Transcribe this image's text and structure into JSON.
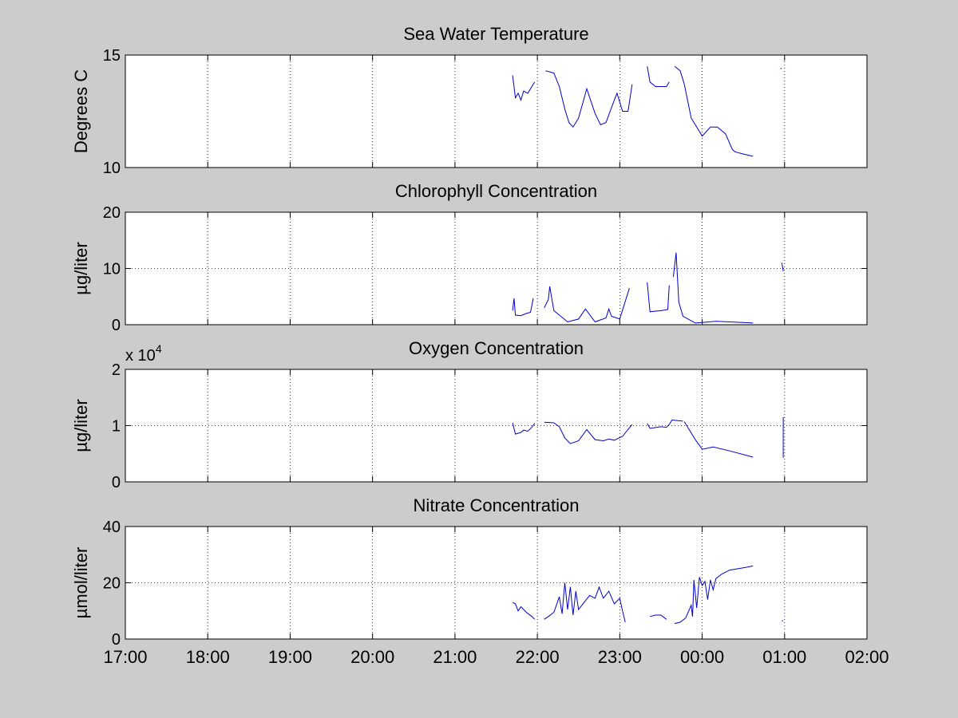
{
  "figure": {
    "background": "#cccccc",
    "axes_background": "#ffffff",
    "line_color": "#0000cc"
  },
  "chart_data": [
    {
      "type": "line",
      "title": "Sea Water Temperature",
      "ylabel": "Degrees C",
      "xlabel": "",
      "ylim": [
        10,
        15
      ],
      "yticks": [
        "10",
        "15"
      ],
      "ytick_values": [
        10,
        15
      ],
      "exponent_label": "",
      "xlim": [
        "17:00",
        "02:00"
      ],
      "grid": true,
      "show_xticklabels": false,
      "segments": [
        [
          [
            "21:42",
            14.1
          ],
          [
            "21:44",
            13.1
          ],
          [
            "21:46",
            13.3
          ],
          [
            "21:48",
            13.0
          ],
          [
            "21:50",
            13.4
          ],
          [
            "21:53",
            13.3
          ],
          [
            "21:56",
            13.6
          ],
          [
            "21:58",
            13.8
          ]
        ],
        [
          [
            "22:06",
            14.3
          ],
          [
            "22:12",
            14.2
          ],
          [
            "22:16",
            13.6
          ],
          [
            "22:20",
            12.6
          ],
          [
            "22:23",
            12.0
          ],
          [
            "22:26",
            11.8
          ],
          [
            "22:30",
            12.2
          ],
          [
            "22:36",
            13.5
          ],
          [
            "22:42",
            12.4
          ],
          [
            "22:46",
            11.9
          ],
          [
            "22:50",
            12.0
          ],
          [
            "22:56",
            13.0
          ],
          [
            "22:58",
            13.3
          ],
          [
            "23:02",
            12.5
          ],
          [
            "23:06",
            12.5
          ],
          [
            "23:09",
            13.7
          ]
        ],
        [
          [
            "23:20",
            14.5
          ],
          [
            "23:22",
            13.8
          ],
          [
            "23:26",
            13.6
          ],
          [
            "23:32",
            13.6
          ],
          [
            "23:34",
            13.6
          ],
          [
            "23:36",
            13.8
          ]
        ],
        [
          [
            "23:40",
            14.5
          ],
          [
            "23:44",
            14.3
          ],
          [
            "23:47",
            13.7
          ],
          [
            "23:52",
            12.2
          ],
          [
            "23:56",
            11.8
          ],
          [
            "00:00",
            11.4
          ],
          [
            "00:06",
            11.8
          ],
          [
            "00:11",
            11.8
          ],
          [
            "00:17",
            11.5
          ],
          [
            "00:22",
            10.8
          ],
          [
            "00:24",
            10.7
          ],
          [
            "00:30",
            10.6
          ],
          [
            "00:37",
            10.5
          ]
        ],
        [
          [
            "00:57",
            14.4
          ],
          [
            "00:58",
            14.4
          ]
        ]
      ]
    },
    {
      "type": "line",
      "title": "Chlorophyll Concentration",
      "ylabel": "µg/liter",
      "xlabel": "",
      "ylim": [
        0,
        20
      ],
      "yticks": [
        "0",
        "10",
        "20"
      ],
      "ytick_values": [
        0,
        10,
        20
      ],
      "exponent_label": "",
      "xlim": [
        "17:00",
        "02:00"
      ],
      "grid": true,
      "show_xticklabels": false,
      "segments": [
        [
          [
            "21:42",
            2.5
          ],
          [
            "21:43",
            4.7
          ],
          [
            "21:44",
            1.7
          ],
          [
            "21:48",
            1.6
          ],
          [
            "21:52",
            2.0
          ],
          [
            "21:55",
            2.2
          ],
          [
            "21:57",
            4.7
          ]
        ],
        [
          [
            "22:05",
            3.0
          ],
          [
            "22:08",
            4.5
          ],
          [
            "22:09",
            6.8
          ],
          [
            "22:12",
            2.5
          ],
          [
            "22:22",
            0.5
          ],
          [
            "22:30",
            1.0
          ],
          [
            "22:35",
            2.8
          ],
          [
            "22:42",
            0.5
          ],
          [
            "22:50",
            1.2
          ],
          [
            "22:52",
            2.8
          ],
          [
            "22:54",
            1.5
          ],
          [
            "23:00",
            1.0
          ],
          [
            "23:07",
            6.5
          ]
        ],
        [
          [
            "23:20",
            7.5
          ],
          [
            "23:22",
            2.3
          ],
          [
            "23:30",
            2.5
          ],
          [
            "23:35",
            2.7
          ],
          [
            "23:36",
            7.0
          ]
        ],
        [
          [
            "23:39",
            8.5
          ],
          [
            "23:41",
            12.8
          ],
          [
            "23:43",
            4.0
          ],
          [
            "23:46",
            1.5
          ],
          [
            "23:55",
            0.3
          ],
          [
            "00:10",
            0.6
          ],
          [
            "00:30",
            0.4
          ],
          [
            "00:37",
            0.3
          ]
        ],
        [
          [
            "00:58",
            11.0
          ],
          [
            "00:59",
            9.5
          ]
        ]
      ]
    },
    {
      "type": "line",
      "title": "Oxygen Concentration",
      "ylabel": "µg/liter",
      "xlabel": "",
      "ylim": [
        0,
        20000
      ],
      "yticks": [
        "0",
        "1",
        "2"
      ],
      "ytick_values": [
        0,
        10000,
        20000
      ],
      "exponent_label": "x 10",
      "exponent_power": "4",
      "xlim": [
        "17:00",
        "02:00"
      ],
      "grid": true,
      "show_xticklabels": false,
      "segments": [
        [
          [
            "21:42",
            10500
          ],
          [
            "21:44",
            8500
          ],
          [
            "21:48",
            8800
          ],
          [
            "21:50",
            9200
          ],
          [
            "21:53",
            9000
          ],
          [
            "21:56",
            9700
          ],
          [
            "21:58",
            10400
          ]
        ],
        [
          [
            "22:05",
            10600
          ],
          [
            "22:12",
            10500
          ],
          [
            "22:16",
            9800
          ],
          [
            "22:20",
            7800
          ],
          [
            "22:24",
            6800
          ],
          [
            "22:30",
            7300
          ],
          [
            "22:36",
            9300
          ],
          [
            "22:42",
            7500
          ],
          [
            "22:48",
            7300
          ],
          [
            "22:52",
            7600
          ],
          [
            "22:56",
            7400
          ],
          [
            "23:02",
            8100
          ],
          [
            "23:09",
            10200
          ]
        ],
        [
          [
            "23:20",
            10400
          ],
          [
            "23:22",
            9500
          ],
          [
            "23:30",
            9800
          ],
          [
            "23:34",
            9700
          ],
          [
            "23:36",
            10200
          ],
          [
            "23:38",
            11000
          ],
          [
            "23:46",
            10800
          ]
        ],
        [
          [
            "23:47",
            10700
          ],
          [
            "23:55",
            7500
          ],
          [
            "00:00",
            5800
          ],
          [
            "00:08",
            6200
          ],
          [
            "00:20",
            5500
          ],
          [
            "00:37",
            4400
          ]
        ],
        [
          [
            "00:59",
            4300
          ],
          [
            "00:59",
            11500
          ]
        ]
      ]
    },
    {
      "type": "line",
      "title": "Nitrate Concentration",
      "ylabel": "µmol/liter",
      "xlabel": "",
      "ylim": [
        0,
        40
      ],
      "yticks": [
        "0",
        "20",
        "40"
      ],
      "ytick_values": [
        0,
        20,
        40
      ],
      "exponent_label": "",
      "xlim": [
        "17:00",
        "02:00"
      ],
      "grid": true,
      "show_xticklabels": true,
      "xticks": [
        "17:00",
        "18:00",
        "19:00",
        "20:00",
        "21:00",
        "22:00",
        "23:00",
        "00:00",
        "01:00",
        "02:00"
      ],
      "segments": [
        [
          [
            "21:42",
            13.0
          ],
          [
            "21:44",
            12.5
          ],
          [
            "21:46",
            10.0
          ],
          [
            "21:48",
            11.5
          ],
          [
            "21:52",
            9.5
          ],
          [
            "21:56",
            8.0
          ],
          [
            "21:58",
            7.0
          ]
        ],
        [
          [
            "22:05",
            7.0
          ],
          [
            "22:08",
            8.0
          ],
          [
            "22:12",
            9.5
          ],
          [
            "22:16",
            15.0
          ],
          [
            "22:18",
            9.0
          ],
          [
            "22:20",
            20.0
          ],
          [
            "22:22",
            10.5
          ],
          [
            "22:24",
            18.5
          ],
          [
            "22:26",
            8.5
          ],
          [
            "22:28",
            17.0
          ],
          [
            "22:30",
            10.5
          ],
          [
            "22:34",
            13.0
          ],
          [
            "22:38",
            15.5
          ],
          [
            "22:42",
            14.5
          ],
          [
            "22:45",
            18.5
          ],
          [
            "22:48",
            14.5
          ],
          [
            "22:52",
            17.0
          ],
          [
            "22:56",
            12.5
          ],
          [
            "23:00",
            14.5
          ],
          [
            "23:02",
            10.0
          ],
          [
            "23:04",
            6.0
          ]
        ],
        [
          [
            "23:22",
            8.0
          ],
          [
            "23:26",
            8.5
          ],
          [
            "23:30",
            8.5
          ],
          [
            "23:34",
            7.0
          ]
        ],
        [
          [
            "23:40",
            5.5
          ],
          [
            "23:44",
            6.0
          ],
          [
            "23:48",
            7.5
          ],
          [
            "23:52",
            12.0
          ],
          [
            "23:53",
            8.0
          ],
          [
            "23:54",
            21.0
          ],
          [
            "23:56",
            11.0
          ],
          [
            "23:58",
            22.0
          ],
          [
            "00:00",
            19.0
          ],
          [
            "00:02",
            20.5
          ],
          [
            "00:04",
            14.0
          ],
          [
            "00:06",
            21.0
          ],
          [
            "00:08",
            17.5
          ],
          [
            "00:10",
            21.5
          ],
          [
            "00:14",
            23.0
          ],
          [
            "00:20",
            24.5
          ],
          [
            "00:26",
            25.0
          ],
          [
            "00:32",
            25.5
          ],
          [
            "00:37",
            26.0
          ]
        ],
        [
          [
            "00:58",
            6.5
          ],
          [
            "00:59",
            6.5
          ]
        ]
      ]
    }
  ]
}
